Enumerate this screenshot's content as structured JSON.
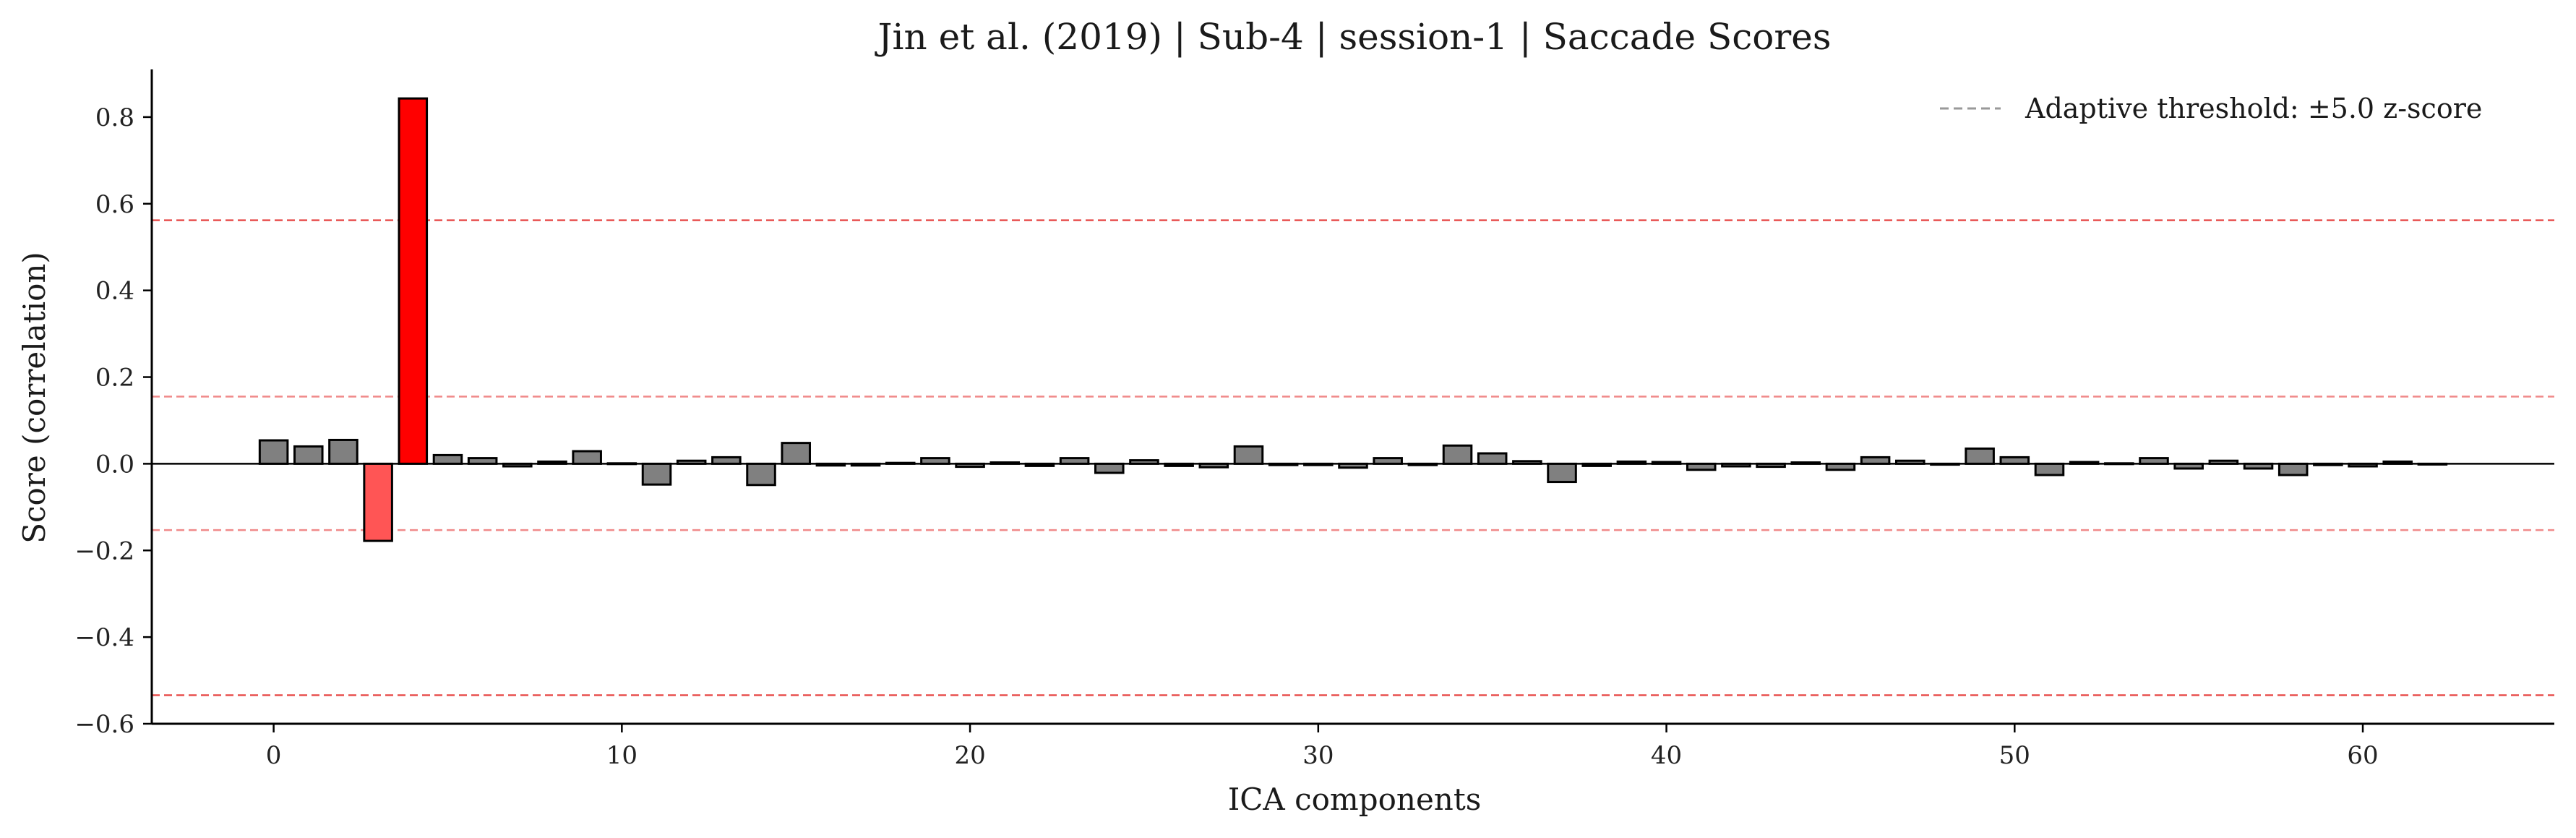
{
  "chart_data": {
    "type": "bar",
    "title": "Jin et al. (2019) | Sub-4 | session-1 | Saccade Scores",
    "xlabel": "ICA components",
    "ylabel": "Score (correlation)",
    "xlim": [
      -3.5,
      65.5
    ],
    "ylim": [
      -0.6,
      0.91
    ],
    "x_ticks": [
      0,
      10,
      20,
      30,
      40,
      50,
      60
    ],
    "x_tick_labels": [
      "0",
      "10",
      "20",
      "30",
      "40",
      "50",
      "60"
    ],
    "y_ticks": [
      -0.6,
      -0.4,
      -0.2,
      0.0,
      0.2,
      0.4,
      0.6,
      0.8
    ],
    "y_tick_labels": [
      "−0.6",
      "−0.4",
      "−0.2",
      "0.0",
      "0.2",
      "0.4",
      "0.6",
      "0.8"
    ],
    "grid": false,
    "legend": {
      "position": "top-right",
      "label": "Adaptive threshold: ±5.0 z-score"
    },
    "x": [
      0,
      1,
      2,
      3,
      4,
      5,
      6,
      7,
      8,
      9,
      10,
      11,
      12,
      13,
      14,
      15,
      16,
      17,
      18,
      19,
      20,
      21,
      22,
      23,
      24,
      25,
      26,
      27,
      28,
      29,
      30,
      31,
      32,
      33,
      34,
      35,
      36,
      37,
      38,
      39,
      40,
      41,
      42,
      43,
      44,
      45,
      46,
      47,
      48,
      49,
      50,
      51,
      52,
      53,
      54,
      55,
      56,
      57,
      58,
      59,
      60,
      61,
      62
    ],
    "values": [
      0.054,
      0.04,
      0.055,
      -0.178,
      0.843,
      0.02,
      0.013,
      -0.006,
      0.005,
      0.029,
      0.001,
      -0.048,
      0.007,
      0.015,
      -0.049,
      0.048,
      -0.004,
      -0.004,
      0.002,
      0.013,
      -0.007,
      0.003,
      -0.005,
      0.013,
      -0.021,
      0.008,
      -0.005,
      -0.008,
      0.04,
      -0.003,
      -0.003,
      -0.009,
      0.013,
      -0.003,
      0.042,
      0.024,
      0.006,
      -0.042,
      -0.005,
      0.005,
      0.004,
      -0.014,
      -0.006,
      -0.007,
      0.003,
      -0.014,
      0.015,
      0.007,
      -0.002,
      0.035,
      0.015,
      -0.026,
      0.004,
      0.001,
      0.013,
      -0.011,
      0.007,
      -0.011,
      -0.026,
      -0.003,
      -0.006,
      0.005,
      0.0
    ],
    "highlighted": {
      "3": "#ff5555",
      "4": "#ff0000"
    },
    "thresholds": [
      {
        "value": 0.562,
        "color": "#e8504f"
      },
      {
        "value": 0.155,
        "color": "#f08a8a"
      },
      {
        "value": -0.153,
        "color": "#f08a8a"
      },
      {
        "value": -0.534,
        "color": "#e8504f"
      }
    ],
    "colors": {
      "bar": "#808080",
      "bar_edge": "#000000",
      "legend_line": "#999999",
      "axis": "#000000",
      "text": "#222222"
    }
  }
}
